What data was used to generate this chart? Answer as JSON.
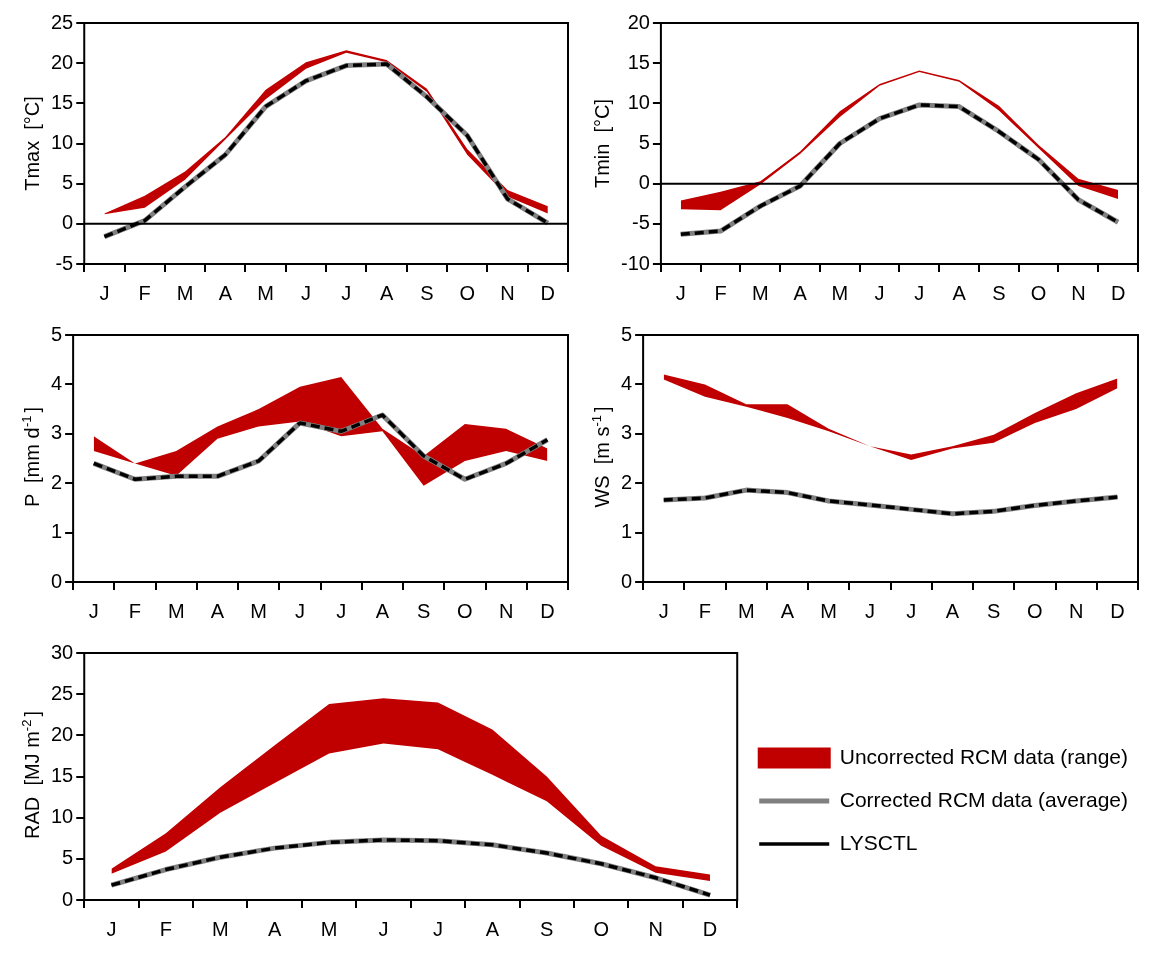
{
  "chart_data": [
    {
      "type": "line",
      "ylabel": "Tmax  [°C]",
      "categories": [
        "J",
        "F",
        "M",
        "A",
        "M",
        "J",
        "J",
        "A",
        "S",
        "O",
        "N",
        "D"
      ],
      "ylim": [
        -5,
        25
      ],
      "yticks": [
        -5,
        0,
        5,
        10,
        15,
        20,
        25
      ],
      "grid": false,
      "ref_lines": [
        {
          "axis": "y",
          "value": 0,
          "color": "#000000"
        }
      ],
      "series": [
        {
          "type": "area",
          "color": "#c00000",
          "values": [
            null,
            null,
            null,
            null,
            null,
            null,
            null,
            null,
            null,
            null,
            null,
            null
          ],
          "lower": [
            1.2,
            2.0,
            5.5,
            10.5,
            15.5,
            19.3,
            21.3,
            20.1,
            16.4,
            8.6,
            3.4,
            1.3
          ],
          "upper": [
            1.3,
            3.5,
            6.5,
            10.8,
            16.7,
            20.1,
            21.6,
            20.4,
            16.8,
            9.3,
            4.2,
            2.2
          ]
        },
        {
          "color": "#808080",
          "values": [
            -1.6,
            0.4,
            4.6,
            8.6,
            14.6,
            17.8,
            19.7,
            19.9,
            15.8,
            11.0,
            3.1,
            0.1
          ]
        },
        {
          "color": "#000000",
          "line_style": "dashed",
          "values": [
            -1.6,
            0.4,
            4.6,
            8.6,
            14.6,
            17.8,
            19.7,
            19.9,
            15.8,
            11.0,
            3.1,
            0.1
          ]
        }
      ]
    },
    {
      "type": "line",
      "ylabel": "Tmin  [°C]",
      "categories": [
        "J",
        "F",
        "M",
        "A",
        "M",
        "J",
        "J",
        "A",
        "S",
        "O",
        "N",
        "D"
      ],
      "ylim": [
        -10,
        20
      ],
      "yticks": [
        -10,
        -5,
        0,
        5,
        10,
        15,
        20
      ],
      "grid": false,
      "ref_lines": [
        {
          "axis": "y",
          "value": 0,
          "color": "#000000"
        }
      ],
      "series": [
        {
          "type": "area",
          "color": "#c00000",
          "values": [
            null,
            null,
            null,
            null,
            null,
            null,
            null,
            null,
            null,
            null,
            null,
            null
          ],
          "lower": [
            -3.2,
            -3.3,
            -0.1,
            3.7,
            8.3,
            12.2,
            13.9,
            12.7,
            9.1,
            4.4,
            -0.3,
            -1.9
          ],
          "upper": [
            -2.1,
            -1.0,
            0.3,
            4.0,
            9.0,
            12.4,
            14.1,
            12.9,
            9.7,
            4.8,
            0.6,
            -0.8
          ]
        },
        {
          "color": "#808080",
          "values": [
            -6.3,
            -5.9,
            -2.8,
            -0.3,
            5.0,
            8.1,
            9.8,
            9.6,
            6.5,
            3.0,
            -2.0,
            -4.8
          ]
        },
        {
          "color": "#000000",
          "line_style": "dashed",
          "values": [
            -6.3,
            -5.9,
            -2.8,
            -0.3,
            5.0,
            8.1,
            9.8,
            9.6,
            6.5,
            3.0,
            -2.0,
            -4.8
          ]
        }
      ]
    },
    {
      "type": "line",
      "ylabel": "P  [mm d$^{-1}$]",
      "categories": [
        "J",
        "F",
        "M",
        "A",
        "M",
        "J",
        "J",
        "A",
        "S",
        "O",
        "N",
        "D"
      ],
      "ylim": [
        0,
        5
      ],
      "yticks": [
        0,
        1,
        2,
        3,
        4,
        5
      ],
      "grid": false,
      "series": [
        {
          "type": "area",
          "color": "#c00000",
          "values": [
            null,
            null,
            null,
            null,
            null,
            null,
            null,
            null,
            null,
            null,
            null,
            null
          ],
          "lower": [
            2.65,
            2.4,
            2.15,
            2.9,
            3.15,
            3.25,
            2.95,
            3.05,
            1.95,
            2.45,
            2.65,
            2.45
          ],
          "upper": [
            2.95,
            2.4,
            2.65,
            3.15,
            3.5,
            3.95,
            4.15,
            3.1,
            2.55,
            3.2,
            3.1,
            2.7
          ]
        },
        {
          "color": "#808080",
          "values": [
            2.4,
            2.08,
            2.14,
            2.14,
            2.45,
            3.22,
            3.05,
            3.38,
            2.55,
            2.08,
            2.4,
            2.88
          ]
        },
        {
          "color": "#000000",
          "line_style": "dashed",
          "values": [
            2.4,
            2.08,
            2.14,
            2.14,
            2.45,
            3.22,
            3.05,
            3.38,
            2.55,
            2.08,
            2.4,
            2.88
          ]
        }
      ]
    },
    {
      "type": "line",
      "ylabel": "WS  [m s$^{-1}$]",
      "categories": [
        "J",
        "F",
        "M",
        "A",
        "M",
        "J",
        "J",
        "A",
        "S",
        "O",
        "N",
        "D"
      ],
      "ylim": [
        0,
        5
      ],
      "yticks": [
        0,
        1,
        2,
        3,
        4,
        5
      ],
      "grid": false,
      "series": [
        {
          "type": "area",
          "color": "#c00000",
          "values": [
            null,
            null,
            null,
            null,
            null,
            null,
            null,
            null,
            null,
            null,
            null,
            null
          ],
          "lower": [
            4.1,
            3.75,
            3.55,
            3.32,
            3.05,
            2.75,
            2.47,
            2.7,
            2.82,
            3.22,
            3.5,
            3.92
          ],
          "upper": [
            4.2,
            4.0,
            3.6,
            3.6,
            3.1,
            2.75,
            2.58,
            2.75,
            2.98,
            3.42,
            3.82,
            4.12
          ]
        },
        {
          "color": "#808080",
          "values": [
            1.66,
            1.7,
            1.86,
            1.81,
            1.64,
            1.56,
            1.47,
            1.38,
            1.43,
            1.55,
            1.64,
            1.72
          ]
        },
        {
          "color": "#000000",
          "line_style": "dashed",
          "values": [
            1.66,
            1.7,
            1.86,
            1.81,
            1.64,
            1.56,
            1.47,
            1.38,
            1.43,
            1.55,
            1.64,
            1.72
          ]
        }
      ]
    },
    {
      "type": "line",
      "ylabel": "RAD  [MJ m$^{-2}$]",
      "categories": [
        "J",
        "F",
        "M",
        "A",
        "M",
        "J",
        "J",
        "A",
        "S",
        "O",
        "N",
        "D"
      ],
      "ylim": [
        0,
        30
      ],
      "yticks": [
        0,
        5,
        10,
        15,
        20,
        25,
        30
      ],
      "grid": false,
      "legend": "right",
      "series": [
        {
          "type": "area",
          "name": "Uncorrected RCM data (range)",
          "color": "#c00000",
          "values": [
            null,
            null,
            null,
            null,
            null,
            null,
            null,
            null,
            null,
            null,
            null,
            null
          ],
          "lower": [
            3.2,
            5.9,
            10.6,
            14.2,
            17.8,
            19.0,
            18.3,
            15.2,
            12.0,
            6.6,
            3.3,
            2.3
          ],
          "upper": [
            3.8,
            8.1,
            13.7,
            18.8,
            23.8,
            24.5,
            24.0,
            20.7,
            15.0,
            7.8,
            4.1,
            3.1
          ]
        },
        {
          "name": "Corrected RCM data (average)",
          "color": "#808080",
          "values": [
            1.8,
            3.7,
            5.2,
            6.3,
            7.0,
            7.3,
            7.2,
            6.7,
            5.7,
            4.4,
            2.7,
            0.6
          ]
        },
        {
          "name": "LYSCTL",
          "color": "#000000",
          "line_style": "dashed",
          "values": [
            1.8,
            3.7,
            5.2,
            6.3,
            7.0,
            7.3,
            7.2,
            6.7,
            5.7,
            4.4,
            2.7,
            0.6
          ]
        }
      ]
    }
  ]
}
